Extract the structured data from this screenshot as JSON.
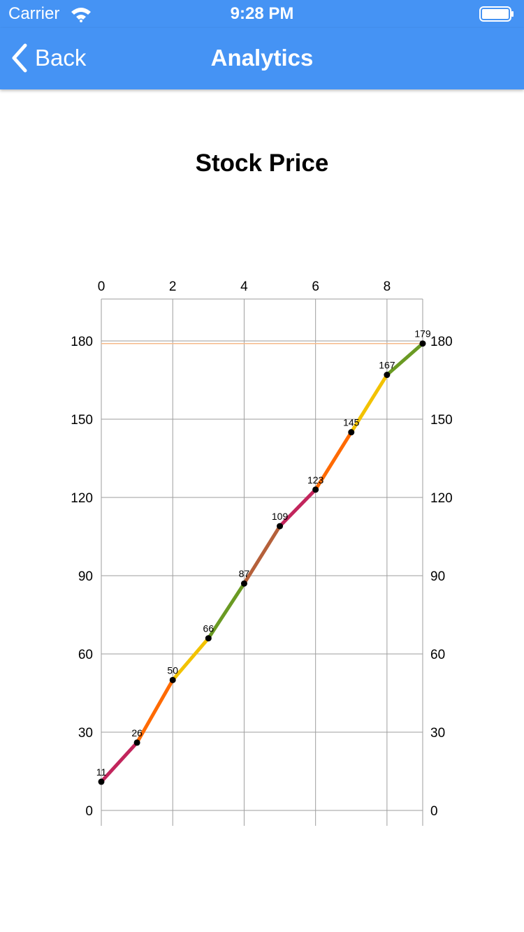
{
  "status_bar": {
    "carrier": "Carrier",
    "time": "9:28 PM"
  },
  "nav": {
    "back_label": "Back",
    "title": "Analytics"
  },
  "colors": {
    "nav_background": "#4593f4",
    "grid": "#9e9e9e",
    "point": "#000000",
    "reference_line": "#f5b98a"
  },
  "chart_data": {
    "type": "line",
    "title": "Stock Price",
    "x": [
      0,
      1,
      2,
      3,
      4,
      5,
      6,
      7,
      8,
      9
    ],
    "values": [
      11,
      26,
      50,
      66,
      87,
      109,
      123,
      145,
      167,
      179
    ],
    "data_labels": [
      "11",
      "26",
      "50",
      "66",
      "87",
      "109",
      "123",
      "145",
      "167",
      "179"
    ],
    "segment_colors": [
      "#c2255c",
      "#ff6a00",
      "#f2c200",
      "#6a9a23",
      "#b5603a",
      "#c2255c",
      "#ff6a00",
      "#f2c200",
      "#6a9a23"
    ],
    "x_ticks": [
      "0",
      "2",
      "4",
      "6",
      "8"
    ],
    "y_ticks": [
      "0",
      "30",
      "60",
      "90",
      "120",
      "150",
      "180"
    ],
    "xlim": [
      0,
      9
    ],
    "ylim": [
      0,
      195
    ],
    "x_axis_position": "top",
    "y_axis_position": "left and right",
    "grid": true,
    "reference_line_y": 179,
    "xlabel": "",
    "ylabel": ""
  }
}
